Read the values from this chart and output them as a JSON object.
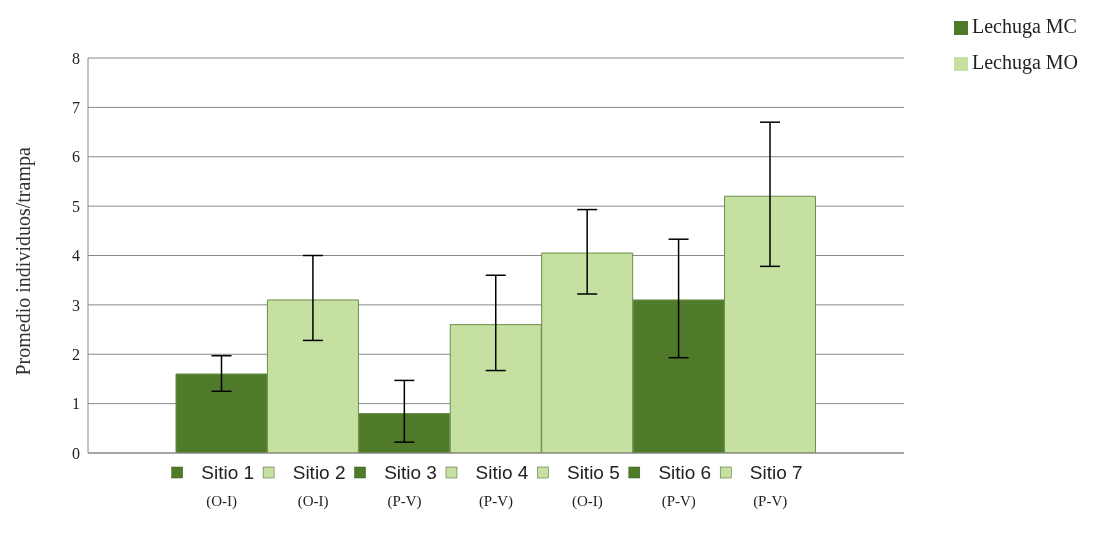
{
  "chart_data": {
    "type": "bar",
    "ylabel": "Promedio individuos/trampa",
    "categories": [
      "Sitio 1\n(O-I)",
      "Sitio 2\n(O-I)",
      "Sitio 3\n(P-V)",
      "Sitio 4\n(P-V)",
      "Sitio 5\n(O-I)",
      "Sitio 6\n(P-V)",
      "Sitio 7\n(P-V)"
    ],
    "series": [
      {
        "name": "Lechuga MC",
        "color": "#4e7a2a",
        "values": [
          1.6,
          null,
          0.8,
          null,
          null,
          3.1,
          null
        ],
        "errors": [
          [
            1.25,
            1.97
          ],
          null,
          [
            0.22,
            1.47
          ],
          null,
          null,
          [
            1.93,
            4.33
          ],
          null
        ]
      },
      {
        "name": "Lechuga MO",
        "color": "#c5e0a0",
        "values": [
          null,
          3.1,
          null,
          2.6,
          4.05,
          null,
          5.2
        ],
        "errors": [
          null,
          [
            2.28,
            4.0
          ],
          null,
          [
            1.67,
            3.6
          ],
          [
            3.22,
            4.93
          ],
          null,
          [
            3.78,
            6.7
          ]
        ]
      }
    ],
    "stacked": true,
    "ylim": [
      0,
      8
    ],
    "yticks": [
      0,
      1,
      2,
      3,
      4,
      5,
      6,
      7,
      8
    ],
    "grid": "y",
    "legend": "top right"
  }
}
